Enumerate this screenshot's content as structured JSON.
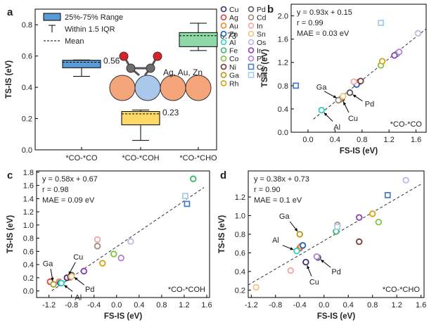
{
  "chart_data": [
    {
      "id": "a",
      "type": "box",
      "panel_label": "a",
      "ylabel": "TS-IS (eV)",
      "ylim": [
        0.0,
        0.9
      ],
      "yticks": [
        0.0,
        0.2,
        0.4,
        0.6,
        0.8
      ],
      "categories": [
        "*CO-*CO",
        "*CO-*COH",
        "*CO-*CHO"
      ],
      "boxes": [
        {
          "category": "*CO-*CO",
          "q1": 0.525,
          "q3": 0.573,
          "mean": 0.56,
          "whisker_low": 0.47,
          "whisker_high": 0.575,
          "label": "0.56",
          "color": "#5b9bd5"
        },
        {
          "category": "*CO-*COH",
          "q1": 0.16,
          "q3": 0.245,
          "mean": 0.23,
          "whisker_low": 0.06,
          "whisker_high": 0.255,
          "label": "0.23",
          "color": "#ffd966"
        },
        {
          "category": "*CO-*CHO",
          "q1": 0.66,
          "q3": 0.75,
          "mean": 0.73,
          "whisker_low": 0.635,
          "whisker_high": 0.81,
          "label": "0.73",
          "color": "#8fd9a8"
        }
      ],
      "legend": {
        "range": "25%-75% Range",
        "iqr": "Within 1.5 IQR",
        "mean": "Mean"
      },
      "inset_label": "Ag, Au, Zn"
    },
    {
      "id": "b",
      "type": "scatter",
      "panel_label": "b",
      "xlabel": "FS-IS (eV)",
      "ylabel": "TS-IS (eV)",
      "xlim": [
        -0.25,
        1.75
      ],
      "ylim": [
        0.0,
        2.2
      ],
      "xticks": [
        0.0,
        0.4,
        0.8,
        1.2,
        1.6
      ],
      "yticks": [
        0.0,
        0.4,
        0.8,
        1.2,
        1.6,
        2.0
      ],
      "fit": {
        "slope": 0.93,
        "intercept": 0.15,
        "x_range": [
          0.08,
          1.75
        ]
      },
      "stats": [
        "y = 0.93x + 0.15",
        "r = 0.99",
        "MAE = 0.03 eV"
      ],
      "corner_label": "*CO-*CO",
      "points": [
        {
          "el": "Cu",
          "x": 0.5,
          "y": 0.58
        },
        {
          "el": "Ag",
          "x": 0.75,
          "y": 0.86
        },
        {
          "el": "Au",
          "x": 0.7,
          "y": 0.85
        },
        {
          "el": "Zn",
          "x": 0.72,
          "y": 0.82
        },
        {
          "el": "Al",
          "x": 0.2,
          "y": 0.38
        },
        {
          "el": "Fe",
          "x": 1.32,
          "y": 1.35
        },
        {
          "el": "Co",
          "x": 1.08,
          "y": 1.15
        },
        {
          "el": "Ni",
          "x": 0.78,
          "y": 0.88
        },
        {
          "el": "Ga",
          "x": 0.47,
          "y": 0.56
        },
        {
          "el": "Rh",
          "x": 1.1,
          "y": 1.22
        },
        {
          "el": "Pd",
          "x": 0.62,
          "y": 0.68
        },
        {
          "el": "Cd",
          "x": 0.45,
          "y": 0.55
        },
        {
          "el": "In",
          "x": 0.68,
          "y": 0.87
        },
        {
          "el": "Sn",
          "x": 0.52,
          "y": 0.62
        },
        {
          "el": "Os",
          "x": 1.63,
          "y": 1.7
        },
        {
          "el": "Ir",
          "x": 1.28,
          "y": 1.32
        },
        {
          "el": "Pt",
          "x": 1.35,
          "y": 1.38
        },
        {
          "el": "Cr",
          "x": -0.18,
          "y": 0.8
        },
        {
          "el": "Mn",
          "x": 1.08,
          "y": 1.88
        }
      ],
      "annotations": [
        {
          "text": "Ga",
          "el": "Ga"
        },
        {
          "text": "Cu",
          "el": "Cu"
        },
        {
          "text": "Pd",
          "el": "Pd"
        },
        {
          "text": "Al",
          "el": "Al"
        }
      ]
    },
    {
      "id": "c",
      "type": "scatter",
      "panel_label": "c",
      "xlabel": "FS-IS (eV)",
      "ylabel": "TS-IS (eV)",
      "xlim": [
        -1.42,
        1.65
      ],
      "ylim": [
        -0.1,
        1.82
      ],
      "xticks": [
        -1.2,
        -0.8,
        -0.4,
        0.0,
        0.4,
        0.8,
        1.2,
        1.6
      ],
      "yticks": [
        0.0,
        0.2,
        0.4,
        0.6,
        0.8,
        1.0,
        1.2,
        1.4,
        1.6,
        1.8
      ],
      "fit": {
        "slope": 0.58,
        "intercept": 0.67,
        "x_range": [
          -1.15,
          1.55
        ]
      },
      "stats": [
        "y = 0.58x + 0.67",
        "r = 0.98",
        "MAE = 0.09 eV"
      ],
      "corner_label": "*CO-*COH",
      "points": [
        {
          "el": "Cu",
          "x": -0.88,
          "y": 0.2
        },
        {
          "el": "Ag",
          "x": -1.18,
          "y": 0.14
        },
        {
          "el": "Au",
          "x": -1.02,
          "y": 0.14
        },
        {
          "el": "Zn",
          "x": -1.0,
          "y": 0.12
        },
        {
          "el": "Al",
          "x": -0.98,
          "y": 0.12
        },
        {
          "el": "Fe",
          "x": 1.36,
          "y": 1.7
        },
        {
          "el": "Co",
          "x": -0.05,
          "y": 0.56
        },
        {
          "el": "Ni",
          "x": -0.82,
          "y": 0.21
        },
        {
          "el": "Ga",
          "x": -1.12,
          "y": 0.1
        },
        {
          "el": "Rh",
          "x": -0.25,
          "y": 0.42
        },
        {
          "el": "Pd",
          "x": -0.8,
          "y": 0.24
        },
        {
          "el": "Cd",
          "x": -0.34,
          "y": 0.68
        },
        {
          "el": "In",
          "x": -0.34,
          "y": 0.78
        },
        {
          "el": "Sn",
          "x": -0.8,
          "y": 0.22
        },
        {
          "el": "Os",
          "x": 0.25,
          "y": 0.75
        },
        {
          "el": "Ir",
          "x": -0.58,
          "y": 0.3
        },
        {
          "el": "Pt",
          "x": 0.08,
          "y": 0.5
        },
        {
          "el": "Cr",
          "x": 1.25,
          "y": 1.32
        },
        {
          "el": "Mn",
          "x": 1.22,
          "y": 1.44
        }
      ],
      "annotations": [
        {
          "text": "Ga",
          "el": "Ga"
        },
        {
          "text": "Cu",
          "el": "Cu"
        },
        {
          "text": "Al",
          "el": "Al"
        },
        {
          "text": "Pd",
          "el": "Pd"
        }
      ]
    },
    {
      "id": "d",
      "type": "scatter",
      "panel_label": "d",
      "xlabel": "FS-IS (eV)",
      "ylabel": "TS-IS (eV)",
      "xlim": [
        -1.25,
        1.65
      ],
      "ylim": [
        0.12,
        1.48
      ],
      "xticks": [
        -1.2,
        -0.8,
        -0.4,
        0.0,
        0.4,
        0.8,
        1.2,
        1.6
      ],
      "yticks": [
        0.2,
        0.4,
        0.6,
        0.8,
        1.0,
        1.2
      ],
      "fit": {
        "slope": 0.38,
        "intercept": 0.73,
        "x_range": [
          -1.25,
          1.62
        ]
      },
      "stats": [
        "y = 0.38x + 0.73",
        "r = 0.90",
        "MAE = 0.1 eV"
      ],
      "corner_label": "*CO-*CHO",
      "points": [
        {
          "el": "Cu",
          "x": -0.3,
          "y": 0.5
        },
        {
          "el": "Ag",
          "x": -0.4,
          "y": 0.65
        },
        {
          "el": "Au",
          "x": -0.38,
          "y": 0.67
        },
        {
          "el": "Zn",
          "x": -0.35,
          "y": 0.68
        },
        {
          "el": "Al",
          "x": -0.45,
          "y": 0.62
        },
        {
          "el": "Fe",
          "x": 0.2,
          "y": 0.83
        },
        {
          "el": "Co",
          "x": 0.9,
          "y": 0.93
        },
        {
          "el": "Ni",
          "x": 0.58,
          "y": 0.72
        },
        {
          "el": "Ga",
          "x": -0.4,
          "y": 0.8
        },
        {
          "el": "Rh",
          "x": 0.8,
          "y": 1.02
        },
        {
          "el": "Pd",
          "x": -0.1,
          "y": 0.55
        },
        {
          "el": "Cd",
          "x": 0.22,
          "y": 0.9
        },
        {
          "el": "In",
          "x": -0.55,
          "y": 0.41
        },
        {
          "el": "Sn",
          "x": -1.12,
          "y": 0.23
        },
        {
          "el": "Os",
          "x": 1.35,
          "y": 1.38
        },
        {
          "el": "Ir",
          "x": 0.58,
          "y": 0.98
        },
        {
          "el": "Pt",
          "x": -0.12,
          "y": 0.56
        },
        {
          "el": "Cr",
          "x": 1.05,
          "y": 1.22
        },
        {
          "el": "Mn",
          "x": 0.22,
          "y": 0.88
        }
      ],
      "annotations": [
        {
          "text": "Ga",
          "el": "Ga"
        },
        {
          "text": "Al",
          "el": "Al"
        },
        {
          "text": "Cu",
          "el": "Cu"
        },
        {
          "text": "Pd",
          "el": "Pd"
        }
      ]
    }
  ],
  "legend": [
    {
      "el": "Cu",
      "color": "#3d2c6e",
      "marker": "circle"
    },
    {
      "el": "Ag",
      "color": "#e2403f",
      "marker": "circle"
    },
    {
      "el": "Au",
      "color": "#f08a31",
      "marker": "circle"
    },
    {
      "el": "Zn",
      "color": "#1f5fbf",
      "marker": "circle"
    },
    {
      "el": "Al",
      "color": "#2ecfc0",
      "marker": "circle"
    },
    {
      "el": "Fe",
      "color": "#39b86b",
      "marker": "circle"
    },
    {
      "el": "Co",
      "color": "#7fc43c",
      "marker": "circle"
    },
    {
      "el": "Ni",
      "color": "#7a3a3a",
      "marker": "circle"
    },
    {
      "el": "Ga",
      "color": "#b89a1c",
      "marker": "circle"
    },
    {
      "el": "Rh",
      "color": "#d4a30f",
      "marker": "circle"
    },
    {
      "el": "Pd",
      "color": "#585858",
      "marker": "circle"
    },
    {
      "el": "Cd",
      "color": "#a08c7a",
      "marker": "circle"
    },
    {
      "el": "In",
      "color": "#f4a6a6",
      "marker": "circle"
    },
    {
      "el": "Sn",
      "color": "#f7c47e",
      "marker": "circle"
    },
    {
      "el": "Os",
      "color": "#b9b9e2",
      "marker": "circle"
    },
    {
      "el": "Ir",
      "color": "#8a3db8",
      "marker": "circle"
    },
    {
      "el": "Pt",
      "color": "#b37fd9",
      "marker": "circle"
    },
    {
      "el": "Cr",
      "color": "#4a7fc4",
      "marker": "square"
    },
    {
      "el": "Mn",
      "color": "#a8ccf0",
      "marker": "square"
    }
  ]
}
